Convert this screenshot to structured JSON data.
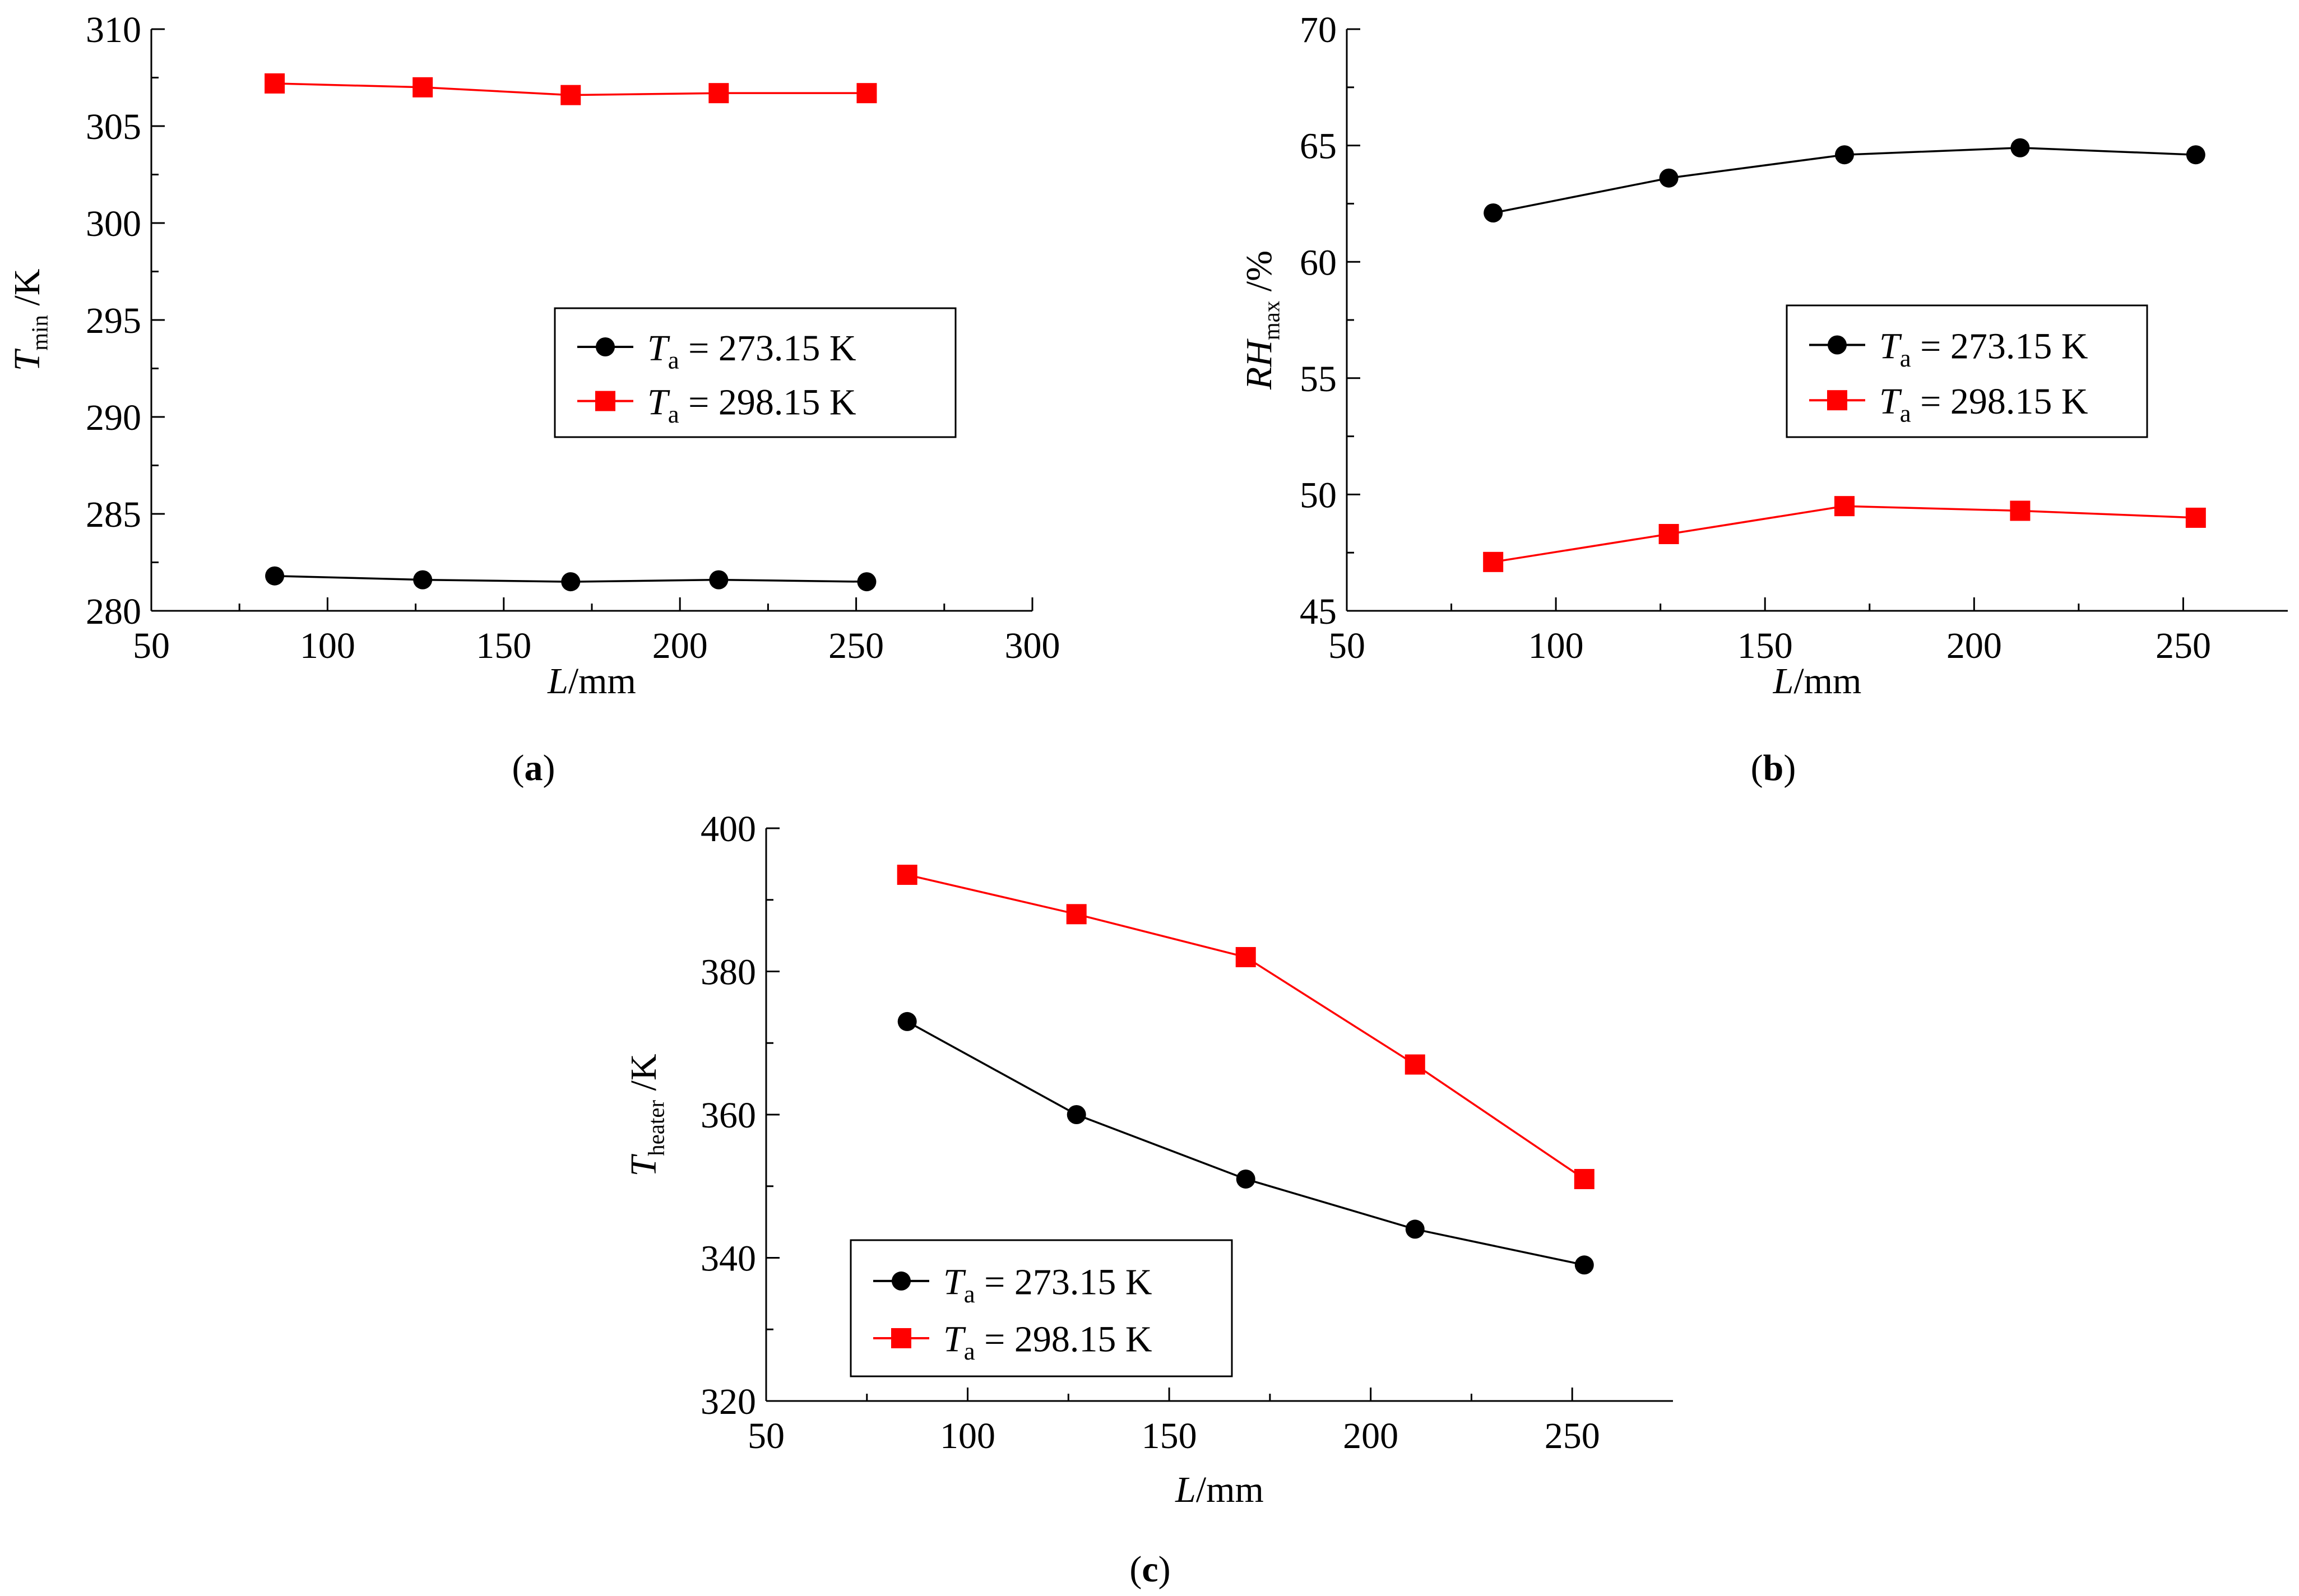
{
  "colors": {
    "series1": "#000000",
    "series2": "#ff0000",
    "axis": "#000000"
  },
  "legend": {
    "symbol": "T",
    "subscript": "a",
    "entries": [
      " = 273.15 K",
      " = 298.15 K"
    ]
  },
  "chart_data": [
    {
      "type": "line",
      "panel_label": "a",
      "ylabel_main": "T",
      "ylabel_sub": "min",
      "ylabel_unit": " /K",
      "xlabel_main": "L",
      "xlabel_unit": "/mm",
      "xlim": [
        50,
        300
      ],
      "ylim": [
        280,
        310
      ],
      "xticks": [
        50,
        100,
        150,
        200,
        250,
        300
      ],
      "yticks": [
        280,
        285,
        290,
        295,
        300,
        305,
        310
      ],
      "x": [
        85,
        127,
        169,
        211,
        253
      ],
      "series": [
        {
          "name": "Ta = 273.15 K",
          "marker": "circle",
          "values": [
            281.8,
            281.6,
            281.5,
            281.6,
            281.5
          ]
        },
        {
          "name": "Ta = 298.15 K",
          "marker": "square",
          "values": [
            307.2,
            307.0,
            306.6,
            306.7,
            306.7
          ]
        }
      ],
      "legend_position": "center-right"
    },
    {
      "type": "line",
      "panel_label": "b",
      "ylabel_main": "RH",
      "ylabel_sub": "max",
      "ylabel_unit": " /%",
      "xlabel_main": "L",
      "xlabel_unit": "/mm",
      "xlim": [
        50,
        275
      ],
      "ylim": [
        45,
        70
      ],
      "xticks": [
        50,
        100,
        150,
        200,
        250
      ],
      "yticks": [
        45,
        50,
        55,
        60,
        65,
        70
      ],
      "x": [
        85,
        127,
        169,
        211,
        253
      ],
      "series": [
        {
          "name": "Ta = 273.15 K",
          "marker": "circle",
          "values": [
            62.1,
            63.6,
            64.6,
            64.9,
            64.6
          ]
        },
        {
          "name": "Ta = 298.15 K",
          "marker": "square",
          "values": [
            47.1,
            48.3,
            49.5,
            49.3,
            49.0
          ]
        }
      ],
      "legend_position": "center-right"
    },
    {
      "type": "line",
      "panel_label": "c",
      "ylabel_main": "T",
      "ylabel_sub": "heater",
      "ylabel_unit": " /K",
      "xlabel_main": "L",
      "xlabel_unit": "/mm",
      "xlim": [
        50,
        275
      ],
      "ylim": [
        320,
        400
      ],
      "xticks": [
        50,
        100,
        150,
        200,
        250
      ],
      "yticks": [
        320,
        340,
        360,
        380,
        400
      ],
      "x": [
        85,
        127,
        169,
        211,
        253
      ],
      "series": [
        {
          "name": "Ta = 273.15 K",
          "marker": "circle",
          "values": [
            373.0,
            360.0,
            351.0,
            344.0,
            339.0
          ]
        },
        {
          "name": "Ta = 298.15 K",
          "marker": "square",
          "values": [
            393.5,
            388.0,
            382.0,
            367.0,
            351.0
          ]
        }
      ],
      "legend_position": "bottom-left"
    }
  ]
}
